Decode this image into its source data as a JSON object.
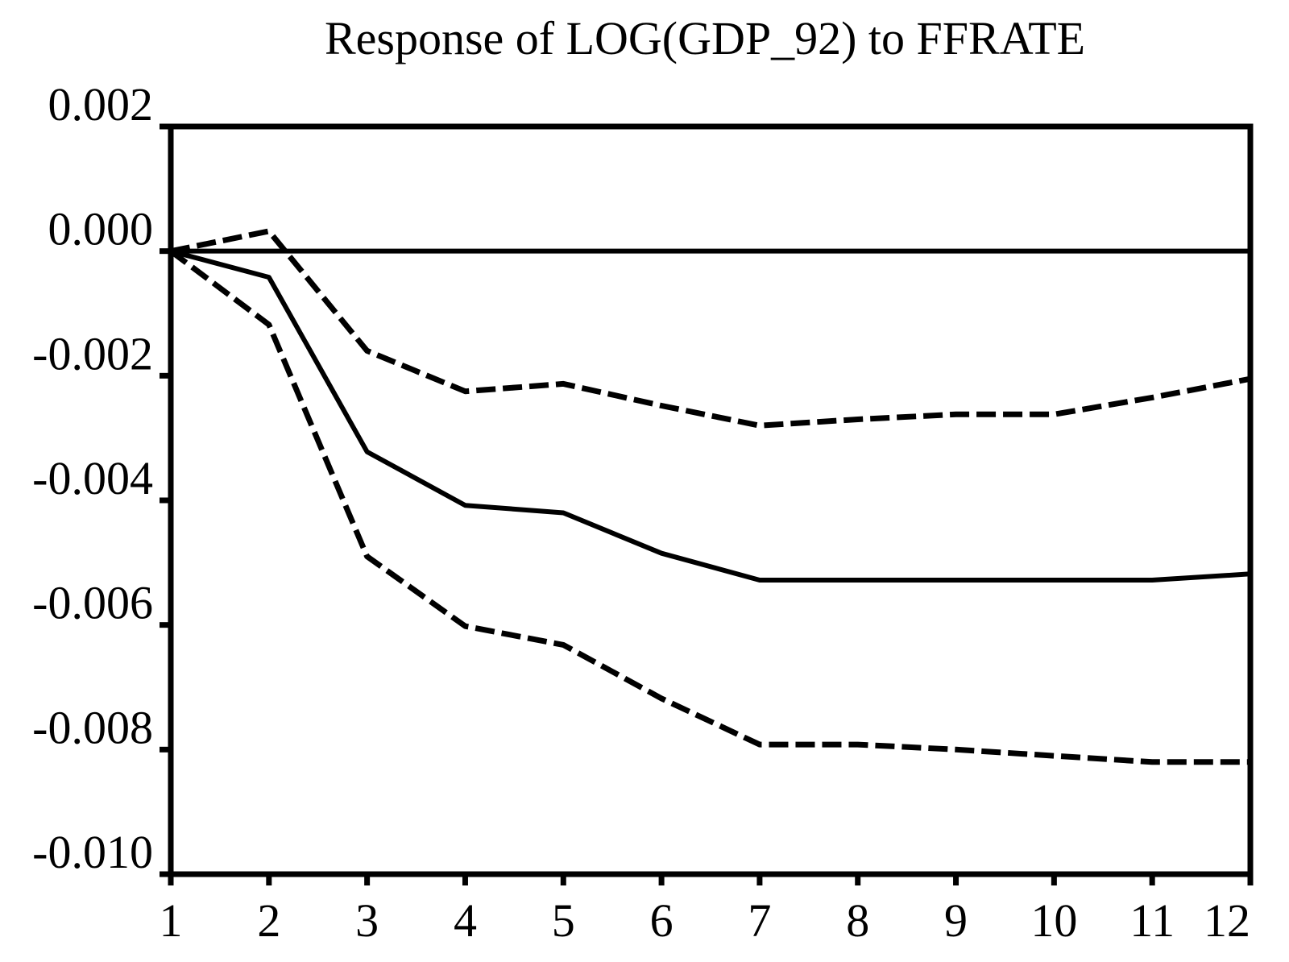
{
  "chart_data": {
    "type": "line",
    "title": "Response of LOG(GDP_92) to FFRATE",
    "xlabel": "",
    "ylabel": "",
    "x": [
      1,
      2,
      3,
      4,
      5,
      6,
      7,
      8,
      9,
      10,
      11,
      12
    ],
    "x_tick_labels": [
      "1",
      "2",
      "3",
      "4",
      "5",
      "6",
      "7",
      "8",
      "9",
      "10",
      "11",
      "12"
    ],
    "y_tick_labels": [
      "0.002",
      "0.000",
      "-0.002",
      "-0.004",
      "-0.006",
      "-0.008",
      "-0.010"
    ],
    "y_ticks": [
      0.002,
      0.0,
      -0.002,
      -0.004,
      -0.006,
      -0.008,
      -0.01
    ],
    "ylim": [
      -0.01,
      0.002
    ],
    "xlim": [
      1,
      12
    ],
    "zero_line": true,
    "grid": false,
    "legend": "none",
    "series": [
      {
        "style": "solid",
        "values": [
          0.0,
          -0.00042,
          -0.00322,
          -0.00408,
          -0.0042,
          -0.00485,
          -0.00528,
          -0.00528,
          -0.00528,
          -0.00528,
          -0.00528,
          -0.00518
        ]
      },
      {
        "style": "dashed",
        "values": [
          0.0,
          0.00032,
          -0.0016,
          -0.00225,
          -0.00213,
          -0.00248,
          -0.0028,
          -0.0027,
          -0.00262,
          -0.00262,
          -0.00235,
          -0.00205
        ]
      },
      {
        "style": "dashed",
        "values": [
          0.0,
          -0.00118,
          -0.0049,
          -0.00602,
          -0.00632,
          -0.00718,
          -0.00792,
          -0.00792,
          -0.008,
          -0.0081,
          -0.0082,
          -0.0082
        ]
      }
    ],
    "colors": {
      "line": "#000000",
      "axes": "#000000",
      "background": "#ffffff"
    }
  }
}
